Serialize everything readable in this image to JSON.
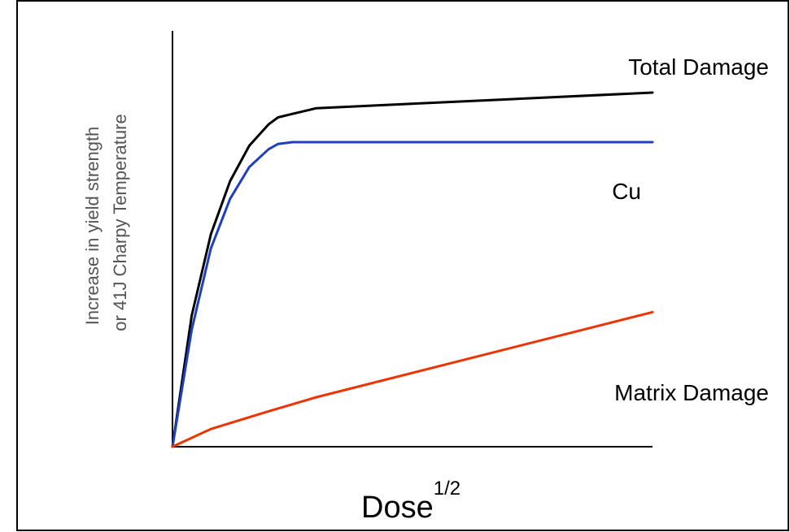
{
  "chart_data": {
    "type": "line",
    "title": "",
    "xlabel_base": "Dose",
    "xlabel_superscript": "1/2",
    "ylabel_lines": [
      "Increase in yield strength",
      "or 41J Charpy Temperature"
    ],
    "xlim": [
      0,
      1
    ],
    "ylim": [
      0,
      1
    ],
    "grid": false,
    "legend": "none",
    "series": [
      {
        "name": "Total Damage",
        "color": "#000000",
        "x": [
          0,
          0.04,
          0.08,
          0.12,
          0.16,
          0.2,
          0.22,
          0.25,
          0.3,
          1.0
        ],
        "y": [
          0,
          0.37,
          0.6,
          0.75,
          0.85,
          0.91,
          0.93,
          0.94,
          0.956,
          1.0
        ]
      },
      {
        "name": "Cu",
        "color": "#1f3fbf",
        "x": [
          0,
          0.04,
          0.08,
          0.12,
          0.16,
          0.2,
          0.22,
          0.25,
          1.0
        ],
        "y": [
          0,
          0.33,
          0.56,
          0.7,
          0.79,
          0.84,
          0.855,
          0.86,
          0.86
        ]
      },
      {
        "name": "Matrix Damage",
        "color": "#ee3300",
        "x": [
          0,
          0.08,
          0.2,
          0.3,
          1.0
        ],
        "y": [
          0,
          0.05,
          0.1,
          0.14,
          0.38
        ]
      }
    ]
  }
}
